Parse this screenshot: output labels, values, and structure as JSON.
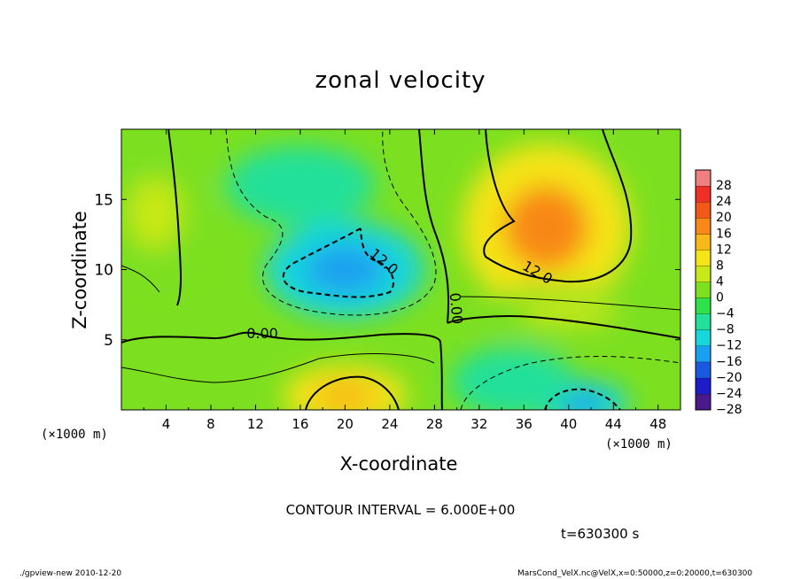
{
  "chart_data": {
    "type": "heatmap",
    "title": "zonal velocity",
    "xlabel": "X-coordinate",
    "ylabel": "Z-coordinate",
    "x_unit_label": "(×1000 m)",
    "x_unit_label_right": "(×1000 m)",
    "xlim": [
      0,
      50
    ],
    "ylim": [
      0,
      20
    ],
    "xticks": [
      4,
      8,
      12,
      16,
      20,
      24,
      28,
      32,
      36,
      40,
      44,
      48
    ],
    "yticks": [
      5,
      10,
      15
    ],
    "colorbar": {
      "levels": [
        -28,
        -24,
        -20,
        -16,
        -12,
        -8,
        -4,
        0,
        4,
        8,
        12,
        16,
        20,
        24,
        28
      ],
      "labels": [
        "28",
        "24",
        "20",
        "16",
        "12",
        "8",
        "4",
        "0",
        "−4",
        "−8",
        "−12",
        "−16",
        "−20",
        "−24",
        "−28"
      ]
    },
    "contour_labels": [
      {
        "text": "12.0",
        "x": 23.2,
        "z": 10.3,
        "rotate": 40
      },
      {
        "text": "12.0",
        "x": 37.0,
        "z": 9.5,
        "rotate": 30
      },
      {
        "text": "0.00",
        "x": 12.6,
        "z": 5.1,
        "rotate": 0
      },
      {
        "text": "0.00",
        "x": 29.5,
        "z": 7.2,
        "rotate": 85
      }
    ],
    "features": [
      {
        "sign": "negative",
        "x": 20,
        "z": 10,
        "peak": -14
      },
      {
        "sign": "negative",
        "x": 16,
        "z": 16,
        "peak": -8
      },
      {
        "sign": "positive",
        "x": 38,
        "z": 13,
        "peak": 16
      },
      {
        "sign": "positive",
        "x": 20,
        "z": 1,
        "peak": 14
      },
      {
        "sign": "negative",
        "x": 41,
        "z": 0.5,
        "peak": -16
      },
      {
        "sign": "negative",
        "x": 35,
        "z": 2,
        "peak": -8
      },
      {
        "sign": "positive",
        "x": 3,
        "z": 14,
        "peak": 4
      },
      {
        "sign": "positive",
        "x": 40,
        "z": 7,
        "peak": 5
      }
    ]
  },
  "contour_interval_text": "CONTOUR INTERVAL = 6.000E+00",
  "time_text": "t=630300 s",
  "footer_left": "./gpview-new  2010-12-20",
  "footer_right": "MarsCond_VelX.nc@VelX,x=0:50000,z=0:20000,t=630300",
  "colors": {
    "colormap": [
      "#4a1a8a",
      "#1c1cc8",
      "#1a5ae0",
      "#1aa0f0",
      "#19d5dc",
      "#22e09a",
      "#2ee04a",
      "#7ce020",
      "#c8e818",
      "#f4e418",
      "#f8b818",
      "#f88818",
      "#f25818",
      "#ee3028",
      "#f08080"
    ],
    "background": "#ffffff",
    "frame": "#000000"
  }
}
